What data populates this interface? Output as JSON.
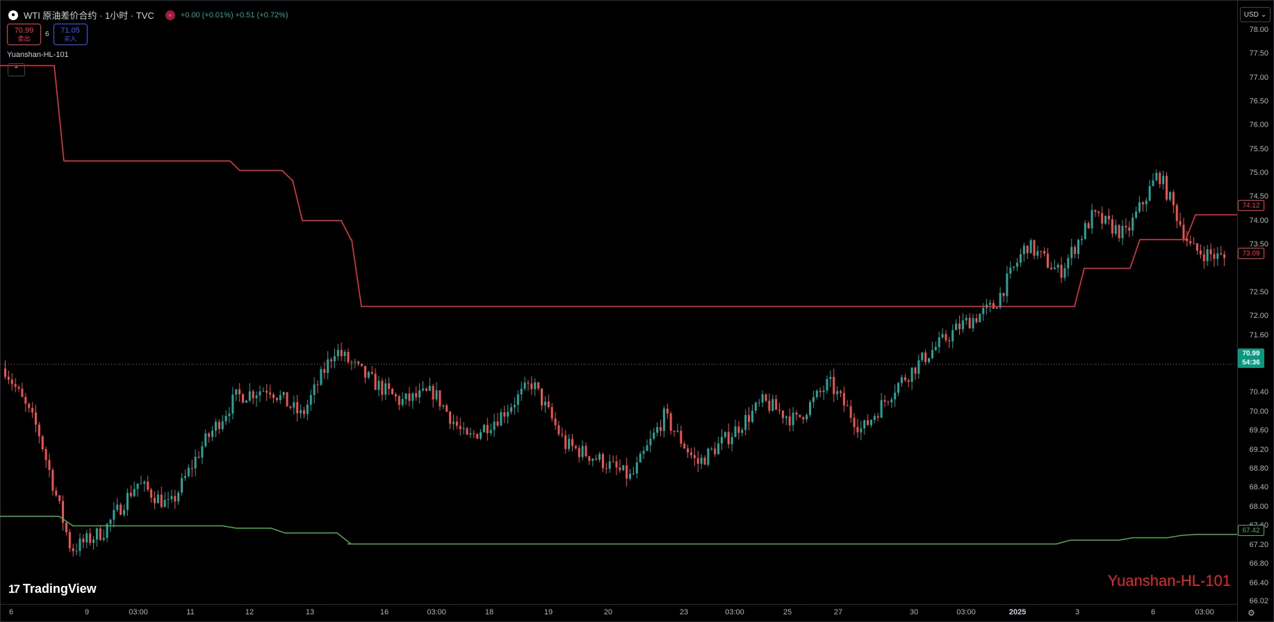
{
  "header": {
    "symbol_title": "WTI 原油差价合约 · 1小时 · TVC",
    "change_text": "+0.00 (+0.01%) +0.51 (+0.72%)",
    "symbol_icon": "drop-icon",
    "market_icon": "exchange-icon"
  },
  "trade": {
    "sell_price": "70.99",
    "sell_label": "卖出",
    "spread": "6",
    "buy_price": "71.05",
    "buy_label": "买入"
  },
  "indicator": {
    "name": "Yuanshan-HL-101",
    "collapse_icon": "chevron-up-icon"
  },
  "currency": {
    "label": "USD",
    "icon": "chevron-down-icon"
  },
  "price_axis": {
    "ticks": [
      "78.00",
      "77.50",
      "77.00",
      "76.50",
      "76.00",
      "75.50",
      "75.00",
      "74.50",
      "74.00",
      "73.50",
      "72.50",
      "72.00",
      "71.60",
      "70.40",
      "70.00",
      "69.60",
      "69.20",
      "68.80",
      "68.40",
      "68.00",
      "67.60",
      "67.20",
      "66.80",
      "66.40",
      "66.02"
    ],
    "labels": {
      "upper_now": "74.12",
      "upper_near": "73.09",
      "last_price": "70.99",
      "countdown": "54:36",
      "lower_now": "67.42"
    }
  },
  "time_axis": {
    "ticks": [
      "6",
      "9",
      "03:00",
      "11",
      "12",
      "13",
      "16",
      "03:00",
      "18",
      "19",
      "20",
      "23",
      "03:00",
      "25",
      "27",
      "30",
      "03:00",
      "2025",
      "3",
      "6",
      "03:00"
    ],
    "bold_tick": "2025"
  },
  "branding": {
    "logo_text": "TradingView",
    "logo_icon": "tradingview-logo-icon",
    "watermark": "Yuanshan-HL-101"
  },
  "footer": {
    "settings_icon": "settings-icon"
  },
  "colors": {
    "up": "#26a69a",
    "down": "#ef5350",
    "upper_band": "#f23645",
    "lower_band": "#4caf50",
    "last_price_bg": "#089981",
    "watermark": "#e32b2b"
  },
  "chart_data": {
    "type": "candlestick",
    "timeframe": "1h",
    "last_price": 70.99,
    "upper_band_steps": [
      77.25,
      75.25,
      75.05,
      74.85,
      74.0,
      73.6,
      72.2,
      72.2,
      73.0,
      73.6,
      74.12
    ],
    "lower_band_steps": [
      67.8,
      67.6,
      67.55,
      67.45,
      67.22,
      67.22,
      67.3,
      67.35,
      67.4,
      67.42
    ],
    "price_path": [
      70.9,
      69.6,
      67.1,
      67.5,
      68.5,
      68.0,
      69.3,
      70.3,
      70.5,
      69.9,
      71.3,
      70.7,
      70.2,
      70.4,
      69.4,
      69.9,
      70.6,
      69.3,
      69.0,
      68.6,
      69.9,
      68.9,
      69.5,
      70.2,
      69.8,
      70.6,
      69.6,
      70.5,
      71.2,
      71.8,
      72.2,
      73.5,
      72.9,
      74.1,
      73.7,
      75.0,
      73.4,
      73.2
    ]
  }
}
